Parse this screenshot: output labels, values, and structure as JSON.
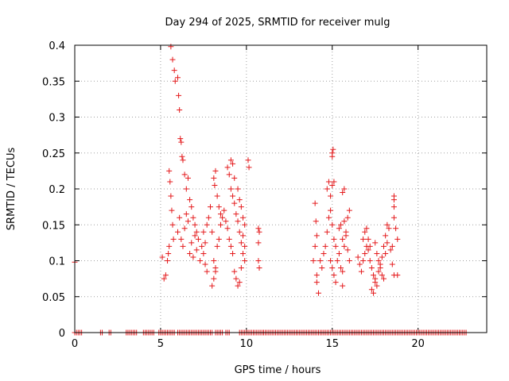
{
  "chart_data": {
    "type": "scatter",
    "title": "Day 294 of 2025, SRMTID for receiver mulg",
    "xlabel": "GPS time / hours",
    "ylabel": "SRMTID / TECUs",
    "xlim": [
      0,
      24
    ],
    "ylim": [
      0,
      0.4
    ],
    "xticks": [
      0,
      5,
      10,
      15,
      20
    ],
    "yticks": [
      0,
      0.05,
      0.1,
      0.15,
      0.2,
      0.25,
      0.3,
      0.35,
      0.4
    ],
    "xtick_labels": [
      "0",
      "5",
      "10",
      "15",
      "20"
    ],
    "ytick_labels": [
      "0",
      "0.05",
      "0.1",
      "0.15",
      "0.2",
      "0.25",
      "0.3",
      "0.35",
      "0.4"
    ],
    "grid": true,
    "marker": "plus",
    "color": "#e41a1c",
    "series": [
      {
        "name": "SRMTID",
        "points": [
          [
            0.0,
            0.098
          ],
          [
            5.6,
            0.398
          ],
          [
            5.7,
            0.38
          ],
          [
            5.8,
            0.365
          ],
          [
            5.85,
            0.35
          ],
          [
            6.0,
            0.355
          ],
          [
            6.05,
            0.33
          ],
          [
            6.1,
            0.31
          ],
          [
            6.15,
            0.27
          ],
          [
            6.2,
            0.265
          ],
          [
            6.25,
            0.245
          ],
          [
            6.3,
            0.24
          ],
          [
            6.4,
            0.22
          ],
          [
            6.5,
            0.2
          ],
          [
            6.6,
            0.215
          ],
          [
            6.7,
            0.185
          ],
          [
            6.8,
            0.175
          ],
          [
            6.9,
            0.16
          ],
          [
            7.0,
            0.15
          ],
          [
            7.1,
            0.14
          ],
          [
            5.5,
            0.225
          ],
          [
            5.55,
            0.21
          ],
          [
            5.6,
            0.19
          ],
          [
            5.65,
            0.17
          ],
          [
            5.7,
            0.15
          ],
          [
            5.75,
            0.13
          ],
          [
            5.5,
            0.12
          ],
          [
            5.45,
            0.11
          ],
          [
            5.4,
            0.1
          ],
          [
            5.3,
            0.08
          ],
          [
            5.2,
            0.075
          ],
          [
            5.1,
            0.105
          ],
          [
            6.0,
            0.14
          ],
          [
            6.1,
            0.16
          ],
          [
            6.2,
            0.13
          ],
          [
            6.3,
            0.12
          ],
          [
            6.4,
            0.145
          ],
          [
            6.5,
            0.165
          ],
          [
            6.6,
            0.155
          ],
          [
            6.7,
            0.11
          ],
          [
            6.8,
            0.125
          ],
          [
            6.9,
            0.105
          ],
          [
            7.0,
            0.135
          ],
          [
            7.1,
            0.115
          ],
          [
            7.2,
            0.13
          ],
          [
            7.3,
            0.1
          ],
          [
            7.4,
            0.12
          ],
          [
            7.5,
            0.14
          ],
          [
            7.6,
            0.125
          ],
          [
            7.7,
            0.15
          ],
          [
            7.8,
            0.16
          ],
          [
            7.9,
            0.175
          ],
          [
            8.0,
            0.14
          ],
          [
            7.5,
            0.11
          ],
          [
            7.6,
            0.095
          ],
          [
            7.7,
            0.085
          ],
          [
            8.1,
            0.1
          ],
          [
            8.2,
            0.09
          ],
          [
            8.3,
            0.12
          ],
          [
            8.4,
            0.13
          ],
          [
            8.5,
            0.15
          ],
          [
            8.6,
            0.16
          ],
          [
            8.7,
            0.17
          ],
          [
            8.8,
            0.155
          ],
          [
            8.9,
            0.145
          ],
          [
            9.0,
            0.13
          ],
          [
            9.1,
            0.12
          ],
          [
            9.2,
            0.11
          ],
          [
            8.1,
            0.215
          ],
          [
            8.15,
            0.205
          ],
          [
            8.2,
            0.225
          ],
          [
            8.3,
            0.19
          ],
          [
            8.4,
            0.175
          ],
          [
            8.5,
            0.165
          ],
          [
            8.0,
            0.065
          ],
          [
            8.1,
            0.075
          ],
          [
            8.2,
            0.085
          ],
          [
            8.9,
            0.23
          ],
          [
            9.0,
            0.22
          ],
          [
            9.1,
            0.24
          ],
          [
            9.2,
            0.235
          ],
          [
            9.3,
            0.215
          ],
          [
            9.1,
            0.2
          ],
          [
            9.2,
            0.19
          ],
          [
            9.3,
            0.18
          ],
          [
            9.4,
            0.165
          ],
          [
            9.5,
            0.155
          ],
          [
            9.6,
            0.14
          ],
          [
            9.7,
            0.125
          ],
          [
            9.8,
            0.11
          ],
          [
            9.9,
            0.1
          ],
          [
            9.3,
            0.085
          ],
          [
            9.4,
            0.075
          ],
          [
            9.5,
            0.065
          ],
          [
            9.6,
            0.07
          ],
          [
            9.7,
            0.09
          ],
          [
            9.5,
            0.2
          ],
          [
            9.6,
            0.185
          ],
          [
            9.7,
            0.175
          ],
          [
            9.8,
            0.16
          ],
          [
            9.9,
            0.15
          ],
          [
            9.8,
            0.135
          ],
          [
            9.9,
            0.12
          ],
          [
            10.1,
            0.24
          ],
          [
            10.15,
            0.23
          ],
          [
            10.7,
            0.145
          ],
          [
            10.75,
            0.14
          ],
          [
            10.7,
            0.125
          ],
          [
            10.7,
            0.1
          ],
          [
            10.75,
            0.09
          ],
          [
            13.9,
            0.1
          ],
          [
            14.0,
            0.12
          ],
          [
            14.1,
            0.135
          ],
          [
            14.05,
            0.155
          ],
          [
            14.1,
            0.08
          ],
          [
            14.1,
            0.07
          ],
          [
            14.2,
            0.055
          ],
          [
            14.0,
            0.18
          ],
          [
            14.3,
            0.1
          ],
          [
            14.4,
            0.09
          ],
          [
            14.5,
            0.11
          ],
          [
            14.6,
            0.12
          ],
          [
            14.7,
            0.14
          ],
          [
            14.8,
            0.16
          ],
          [
            14.9,
            0.19
          ],
          [
            15.0,
            0.205
          ],
          [
            15.1,
            0.21
          ],
          [
            15.0,
            0.25
          ],
          [
            15.05,
            0.255
          ],
          [
            15.0,
            0.245
          ],
          [
            14.7,
            0.2
          ],
          [
            14.8,
            0.21
          ],
          [
            14.9,
            0.17
          ],
          [
            15.0,
            0.15
          ],
          [
            15.1,
            0.13
          ],
          [
            15.2,
            0.12
          ],
          [
            14.9,
            0.1
          ],
          [
            15.0,
            0.09
          ],
          [
            15.1,
            0.08
          ],
          [
            15.2,
            0.07
          ],
          [
            15.3,
            0.1
          ],
          [
            15.4,
            0.11
          ],
          [
            15.5,
            0.09
          ],
          [
            15.6,
            0.085
          ],
          [
            15.7,
            0.12
          ],
          [
            15.8,
            0.14
          ],
          [
            15.9,
            0.16
          ],
          [
            16.0,
            0.17
          ],
          [
            15.7,
            0.2
          ],
          [
            15.6,
            0.195
          ],
          [
            15.4,
            0.145
          ],
          [
            15.5,
            0.15
          ],
          [
            15.6,
            0.13
          ],
          [
            15.7,
            0.155
          ],
          [
            15.8,
            0.135
          ],
          [
            15.9,
            0.115
          ],
          [
            16.0,
            0.1
          ],
          [
            15.6,
            0.065
          ],
          [
            16.5,
            0.105
          ],
          [
            16.6,
            0.095
          ],
          [
            16.7,
            0.085
          ],
          [
            16.8,
            0.1
          ],
          [
            16.9,
            0.11
          ],
          [
            17.0,
            0.12
          ],
          [
            17.1,
            0.115
          ],
          [
            17.2,
            0.1
          ],
          [
            17.3,
            0.09
          ],
          [
            17.4,
            0.08
          ],
          [
            17.5,
            0.07
          ],
          [
            17.6,
            0.065
          ],
          [
            17.3,
            0.06
          ],
          [
            17.4,
            0.055
          ],
          [
            17.5,
            0.075
          ],
          [
            17.7,
            0.085
          ],
          [
            17.8,
            0.095
          ],
          [
            17.9,
            0.105
          ],
          [
            18.0,
            0.12
          ],
          [
            18.1,
            0.135
          ],
          [
            18.2,
            0.15
          ],
          [
            18.3,
            0.145
          ],
          [
            16.8,
            0.13
          ],
          [
            16.9,
            0.14
          ],
          [
            17.0,
            0.145
          ],
          [
            17.1,
            0.13
          ],
          [
            17.2,
            0.12
          ],
          [
            17.5,
            0.125
          ],
          [
            17.6,
            0.11
          ],
          [
            17.7,
            0.1
          ],
          [
            17.8,
            0.09
          ],
          [
            17.9,
            0.08
          ],
          [
            18.0,
            0.075
          ],
          [
            18.1,
            0.11
          ],
          [
            18.2,
            0.125
          ],
          [
            18.4,
            0.115
          ],
          [
            18.5,
            0.12
          ],
          [
            18.6,
            0.16
          ],
          [
            18.6,
            0.175
          ],
          [
            18.6,
            0.19
          ],
          [
            18.6,
            0.185
          ],
          [
            18.7,
            0.145
          ],
          [
            18.8,
            0.13
          ],
          [
            18.5,
            0.095
          ],
          [
            18.6,
            0.08
          ],
          [
            18.8,
            0.08
          ]
        ],
        "zero_intervals": [
          [
            0.0,
            0.45
          ],
          [
            1.5,
            1.6
          ],
          [
            2.0,
            2.1
          ],
          [
            3.0,
            3.6
          ],
          [
            4.0,
            4.2
          ],
          [
            4.3,
            4.6
          ],
          [
            4.9,
            5.8
          ],
          [
            6.0,
            8.0
          ],
          [
            8.2,
            8.6
          ],
          [
            8.8,
            9.0
          ],
          [
            9.6,
            11.0
          ],
          [
            11.0,
            22.8
          ]
        ]
      }
    ]
  }
}
